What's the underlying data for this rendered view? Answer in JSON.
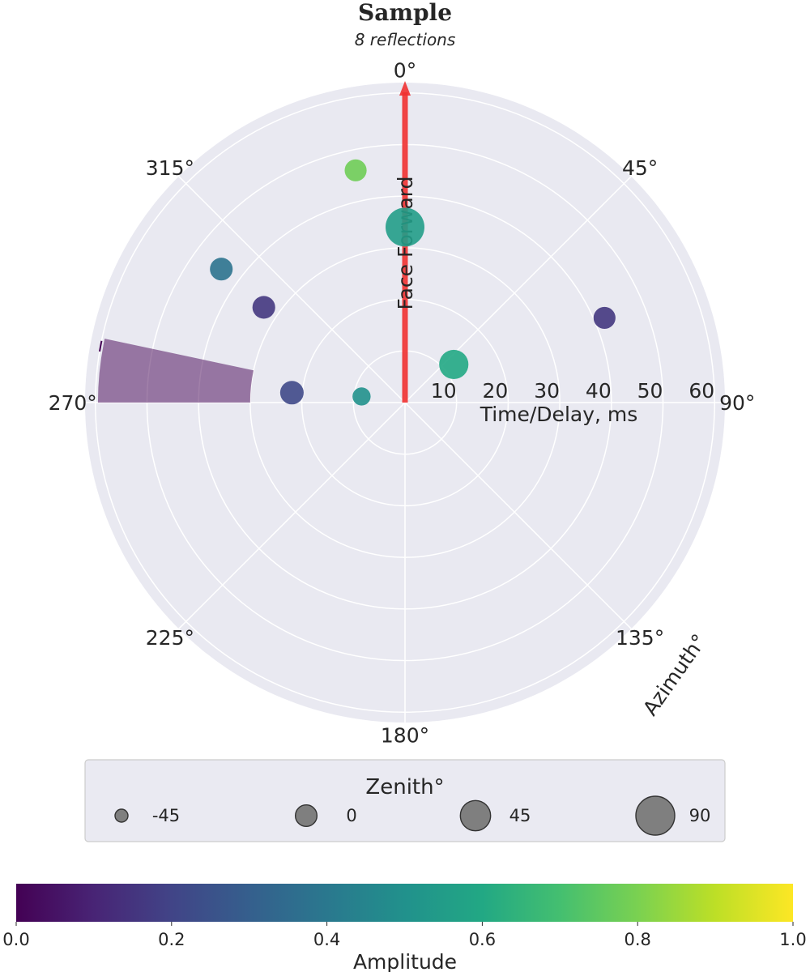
{
  "chart_data": {
    "type": "scatter",
    "projection": "polar",
    "title": "Sample",
    "subtitle": "8 reflections",
    "theta_zero": "top",
    "theta_direction": "clockwise",
    "theta_ticks": [
      "0°",
      "45°",
      "90°",
      "135°",
      "180°",
      "225°",
      "270°",
      "315°"
    ],
    "theta_tick_values": [
      0,
      45,
      90,
      135,
      180,
      225,
      270,
      315
    ],
    "theta_axis_label": "Azimuth°",
    "r_ticks": [
      10,
      20,
      30,
      40,
      50,
      60
    ],
    "r_tick_labels": [
      "10",
      "20",
      "30",
      "40",
      "50",
      "60"
    ],
    "r_axis_label": "Time/Delay, ms",
    "rlim": [
      0,
      62
    ],
    "grid": true,
    "facing": {
      "label": "Face Forward",
      "azimuth": 0,
      "r_max": 62,
      "color": "#f03030"
    },
    "points": [
      {
        "azimuth": 0,
        "delay": 34,
        "zenith": 90,
        "amplitude": 0.55
      },
      {
        "azimuth": -12,
        "delay": 46,
        "zenith": 2,
        "amplitude": 0.78
      },
      {
        "azimuth": -54,
        "delay": 44,
        "zenith": 6,
        "amplitude": 0.38
      },
      {
        "azimuth": -56,
        "delay": 33,
        "zenith": 6,
        "amplitude": 0.16
      },
      {
        "azimuth": -85,
        "delay": 22,
        "zenith": 10,
        "amplitude": 0.22
      },
      {
        "azimuth": -82,
        "delay": 8.5,
        "zenith": -18,
        "amplitude": 0.5
      },
      {
        "azimuth": 67,
        "delay": 42,
        "zenith": 2,
        "amplitude": 0.16
      },
      {
        "azimuth": 52,
        "delay": 12,
        "zenith": 40,
        "amplitude": 0.6
      }
    ],
    "wedge": {
      "azimuth_center": -84,
      "azimuth_width": 12,
      "r_inner": 30,
      "r_outer": 59.5,
      "color": "#440154",
      "opacity": 0.5
    },
    "needle": {
      "azimuth_start": -80.5,
      "azimuth_end": -78.5,
      "r": 60,
      "color": "#440154"
    },
    "legend": {
      "title": "Zenith°",
      "placement": "bottom",
      "entries": [
        {
          "label": "-45",
          "zenith": -45
        },
        {
          "label": "0",
          "zenith": 0
        },
        {
          "label": "45",
          "zenith": 45
        },
        {
          "label": "90",
          "zenith": 90
        }
      ]
    },
    "colorbar": {
      "label": "Amplitude",
      "orientation": "horizontal",
      "colormap": "viridis",
      "range": [
        0,
        1
      ],
      "ticks": [
        0.0,
        0.2,
        0.4,
        0.6,
        0.8,
        1.0
      ],
      "tick_labels": [
        "0.0",
        "0.2",
        "0.4",
        "0.6",
        "0.8",
        "1.0"
      ]
    },
    "colors": {
      "polar_background": "#e9e9f1",
      "grid": "#ffffff",
      "text": "#262626",
      "legend_marker": "#7f7f7f"
    }
  }
}
